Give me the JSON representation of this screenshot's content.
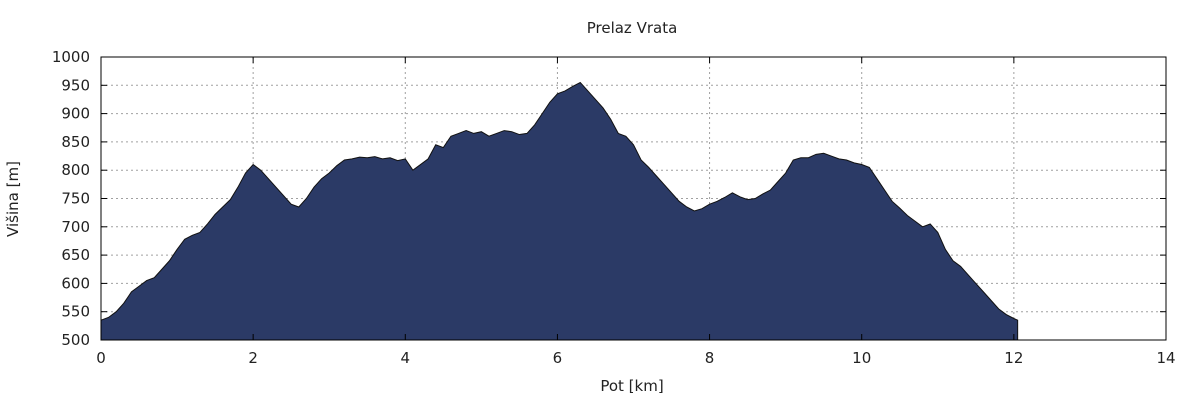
{
  "chart_data": {
    "type": "area",
    "title": "Prelaz Vrata",
    "xlabel": "Pot [km]",
    "ylabel": "Višina [m]",
    "xlim": [
      0,
      14
    ],
    "ylim": [
      500,
      1000
    ],
    "x_ticks": [
      "0",
      "2",
      "4",
      "6",
      "8",
      "10",
      "12",
      "14"
    ],
    "y_ticks": [
      "500",
      "550",
      "600",
      "650",
      "700",
      "750",
      "800",
      "850",
      "900",
      "950",
      "1000"
    ],
    "grid": true,
    "fill_color": "#2b3a66",
    "series": [
      {
        "x": [
          0,
          0.1,
          0.2,
          0.3,
          0.4,
          0.5,
          0.6,
          0.7,
          0.8,
          0.9,
          1.0,
          1.1,
          1.2,
          1.3,
          1.4,
          1.5,
          1.6,
          1.7,
          1.8,
          1.9,
          2.0,
          2.1,
          2.2,
          2.3,
          2.4,
          2.5,
          2.6,
          2.7,
          2.8,
          2.9,
          3.0,
          3.1,
          3.2,
          3.3,
          3.4,
          3.5,
          3.6,
          3.7,
          3.8,
          3.9,
          4.0,
          4.1,
          4.2,
          4.3,
          4.4,
          4.5,
          4.6,
          4.7,
          4.8,
          4.9,
          5.0,
          5.1,
          5.2,
          5.3,
          5.4,
          5.5,
          5.6,
          5.7,
          5.8,
          5.9,
          6.0,
          6.1,
          6.2,
          6.3,
          6.4,
          6.5,
          6.6,
          6.7,
          6.8,
          6.9,
          7.0,
          7.1,
          7.2,
          7.3,
          7.4,
          7.5,
          7.6,
          7.7,
          7.8,
          7.9,
          8.0,
          8.1,
          8.2,
          8.3,
          8.4,
          8.5,
          8.6,
          8.7,
          8.8,
          8.9,
          9.0,
          9.1,
          9.2,
          9.3,
          9.4,
          9.5,
          9.6,
          9.7,
          9.8,
          9.9,
          10.0,
          10.1,
          10.2,
          10.3,
          10.4,
          10.5,
          10.6,
          10.7,
          10.8,
          10.9,
          11.0,
          11.1,
          11.2,
          11.3,
          11.4,
          11.5,
          11.6,
          11.7,
          11.8,
          11.9,
          12.0,
          12.05
        ],
        "y": [
          535,
          540,
          550,
          565,
          585,
          595,
          605,
          610,
          625,
          640,
          660,
          678,
          685,
          690,
          705,
          722,
          735,
          748,
          770,
          795,
          810,
          800,
          785,
          770,
          755,
          740,
          735,
          750,
          770,
          785,
          795,
          808,
          818,
          820,
          823,
          822,
          824,
          820,
          822,
          817,
          820,
          800,
          810,
          820,
          845,
          840,
          860,
          865,
          870,
          865,
          868,
          860,
          865,
          870,
          868,
          863,
          865,
          880,
          900,
          920,
          935,
          940,
          948,
          955,
          940,
          925,
          910,
          890,
          865,
          860,
          845,
          818,
          805,
          790,
          775,
          760,
          745,
          735,
          728,
          732,
          740,
          745,
          752,
          760,
          753,
          748,
          750,
          758,
          765,
          780,
          795,
          818,
          822,
          822,
          828,
          830,
          825,
          820,
          818,
          813,
          810,
          805,
          785,
          765,
          745,
          733,
          720,
          710,
          700,
          705,
          690,
          660,
          640,
          630,
          615,
          600,
          585,
          570,
          555,
          545,
          538,
          535
        ]
      }
    ]
  }
}
